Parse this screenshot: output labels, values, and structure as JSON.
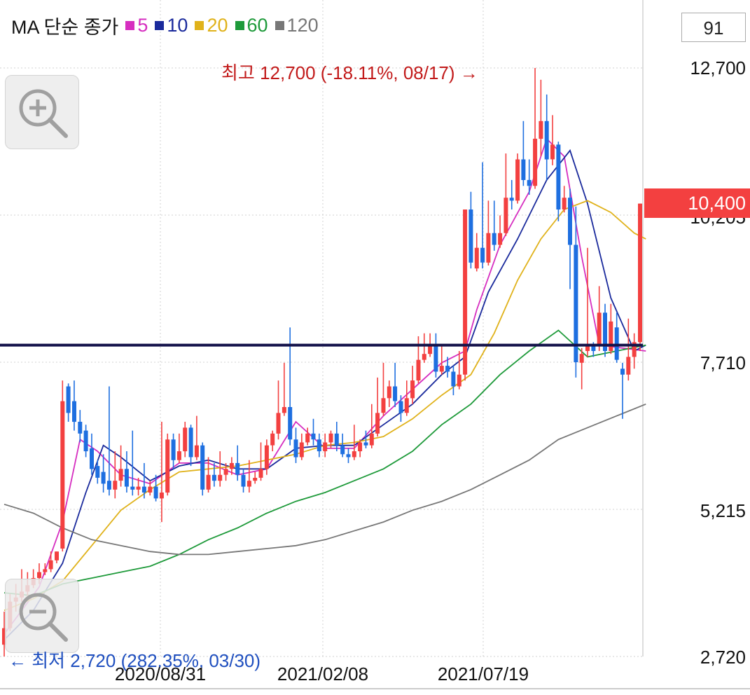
{
  "legend": {
    "title": "MA 단순 종가",
    "items": [
      {
        "label": "5",
        "color": "#d62ec0"
      },
      {
        "label": "10",
        "color": "#1a2a9c"
      },
      {
        "label": "20",
        "color": "#e0b21b"
      },
      {
        "label": "60",
        "color": "#1e9a3a"
      },
      {
        "label": "120",
        "color": "#777777"
      }
    ]
  },
  "count_box": "91",
  "annotations": {
    "high": "최고 12,700 (-18.11%, 08/17) →",
    "low": "← 최저 2,720 (282.35%, 03/30)"
  },
  "price_tag": "10,400",
  "colors": {
    "up": "#f34040",
    "down": "#1e6fe0",
    "support_line": "#14124a",
    "grid": "#d0d0d0"
  },
  "chart_data": {
    "type": "candlestick",
    "y_ticks": [
      "12,700",
      "10,205",
      "7,710",
      "5,215",
      "2,720"
    ],
    "y_tick_values": [
      12700,
      10205,
      7710,
      5215,
      2720
    ],
    "x_ticks": [
      "2020/08/31",
      "2021/02/08",
      "2021/07/19"
    ],
    "ylim": [
      2720,
      12700
    ],
    "high": {
      "value": 12700,
      "change_pct": -18.11,
      "date": "08/17"
    },
    "low": {
      "value": 2720,
      "change_pct": 282.35,
      "date": "03/30"
    },
    "last_price": 10400,
    "horizontal_line": 8000,
    "candles": [
      [
        2920,
        3200,
        2720,
        3480
      ],
      [
        3200,
        3650,
        3150,
        3780
      ],
      [
        3650,
        3720,
        3480,
        3950
      ],
      [
        3720,
        3820,
        3650,
        4200
      ],
      [
        3820,
        3930,
        3750,
        4150
      ],
      [
        3930,
        4050,
        3880,
        4200
      ],
      [
        4050,
        4150,
        3950,
        4300
      ],
      [
        4150,
        4200,
        4100,
        4300
      ],
      [
        4200,
        4350,
        4150,
        4500
      ],
      [
        4350,
        4500,
        4300,
        4500
      ],
      [
        4550,
        7050,
        4500,
        7400
      ],
      [
        7300,
        6850,
        6700,
        7350
      ],
      [
        7050,
        6700,
        6550,
        7400
      ],
      [
        6700,
        6500,
        6350,
        6900
      ],
      [
        6550,
        6200,
        6100,
        6650
      ],
      [
        6250,
        5900,
        5800,
        6500
      ],
      [
        5950,
        5750,
        5650,
        6050
      ],
      [
        5850,
        5650,
        5500,
        6150
      ],
      [
        5700,
        5550,
        5450,
        7300
      ],
      [
        5550,
        5700,
        5400,
        6200
      ],
      [
        5700,
        5900,
        5600,
        6300
      ],
      [
        5900,
        5600,
        5500,
        6200
      ],
      [
        5600,
        5550,
        5450,
        6550
      ],
      [
        5550,
        5600,
        5450,
        5750
      ],
      [
        5600,
        5500,
        5400,
        6000
      ],
      [
        5500,
        5600,
        5450,
        5700
      ],
      [
        5600,
        5400,
        5350,
        5800
      ],
      [
        5400,
        5500,
        5000,
        6700
      ],
      [
        5500,
        6400,
        5450,
        6500
      ],
      [
        6400,
        6050,
        5900,
        6500
      ],
      [
        6050,
        6200,
        6000,
        6500
      ],
      [
        6200,
        6600,
        6100,
        6700
      ],
      [
        6600,
        6100,
        5950,
        6650
      ],
      [
        6100,
        6300,
        6050,
        6800
      ],
      [
        6300,
        5550,
        5450,
        6350
      ],
      [
        5550,
        5800,
        5500,
        6100
      ],
      [
        5800,
        5700,
        5600,
        6000
      ],
      [
        5700,
        5800,
        5600,
        6200
      ],
      [
        5800,
        5900,
        5700,
        6000
      ],
      [
        5900,
        6000,
        5800,
        6100
      ],
      [
        6000,
        5800,
        5700,
        6300
      ],
      [
        5800,
        5600,
        5500,
        5900
      ],
      [
        5600,
        5700,
        5500,
        6050
      ],
      [
        5700,
        5750,
        5650,
        5850
      ],
      [
        5750,
        5900,
        5700,
        6350
      ],
      [
        5900,
        6300,
        5800,
        6400
      ],
      [
        6300,
        6500,
        6200,
        6550
      ],
      [
        6500,
        6850,
        6400,
        7400
      ],
      [
        6850,
        6950,
        6800,
        7700
      ],
      [
        6950,
        6400,
        6300,
        8300
      ],
      [
        6400,
        6100,
        6000,
        6600
      ],
      [
        6100,
        6350,
        6050,
        6500
      ],
      [
        6350,
        6500,
        6300,
        6600
      ],
      [
        6500,
        6400,
        6300,
        6750
      ],
      [
        6400,
        6200,
        6100,
        6500
      ],
      [
        6200,
        6350,
        6100,
        6500
      ],
      [
        6350,
        6500,
        6250,
        6550
      ],
      [
        6500,
        6300,
        6200,
        6700
      ],
      [
        6300,
        6150,
        6100,
        6500
      ],
      [
        6150,
        6100,
        6000,
        6250
      ],
      [
        6100,
        6200,
        6050,
        6650
      ],
      [
        6200,
        6350,
        6100,
        6400
      ],
      [
        6350,
        6300,
        6250,
        6550
      ],
      [
        6300,
        6500,
        6250,
        7000
      ],
      [
        6500,
        6850,
        6450,
        7450
      ],
      [
        6850,
        7100,
        6800,
        7700
      ],
      [
        7100,
        7300,
        6950,
        7400
      ],
      [
        7300,
        7050,
        6950,
        7700
      ],
      [
        7050,
        6850,
        6700,
        7150
      ],
      [
        6850,
        7100,
        6800,
        7400
      ],
      [
        7100,
        7400,
        7000,
        7650
      ],
      [
        7400,
        7750,
        7350,
        8150
      ],
      [
        7750,
        7850,
        7700,
        8200
      ],
      [
        7850,
        8000,
        7800,
        8200
      ],
      [
        8000,
        7550,
        7450,
        8200
      ],
      [
        7550,
        7650,
        7500,
        8000
      ],
      [
        7650,
        7550,
        7450,
        7800
      ],
      [
        7550,
        7300,
        7150,
        7650
      ],
      [
        7300,
        7500,
        7250,
        7900
      ],
      [
        7500,
        10300,
        7400,
        10300
      ],
      [
        10300,
        9400,
        9300,
        10600
      ],
      [
        9300,
        9650,
        9250,
        9900
      ],
      [
        9650,
        9400,
        9300,
        11100
      ],
      [
        9400,
        9900,
        9350,
        10450
      ],
      [
        9900,
        9700,
        9600,
        10450
      ],
      [
        9700,
        9900,
        9650,
        10200
      ],
      [
        9900,
        10500,
        9850,
        11250
      ],
      [
        10500,
        10450,
        10300,
        10800
      ],
      [
        10450,
        11150,
        10400,
        11250
      ],
      [
        11150,
        10800,
        10700,
        11800
      ],
      [
        10800,
        10700,
        10550,
        11150
      ],
      [
        10700,
        11500,
        10650,
        12700
      ],
      [
        11500,
        11800,
        11200,
        12500
      ],
      [
        11800,
        11150,
        10800,
        12250
      ],
      [
        11150,
        11400,
        11050,
        11900
      ],
      [
        11400,
        10300,
        10100,
        11450
      ],
      [
        10300,
        10500,
        10250,
        10700
      ],
      [
        10500,
        9700,
        8950,
        10650
      ],
      [
        9700,
        7710,
        7450,
        10350
      ],
      [
        7700,
        7850,
        7250,
        7950
      ],
      [
        7900,
        8000,
        7800,
        9650
      ],
      [
        8000,
        7900,
        7800,
        8050
      ],
      [
        8000,
        8550,
        7900,
        9000
      ],
      [
        8550,
        7900,
        7800,
        8700
      ],
      [
        7900,
        8400,
        7850,
        8700
      ],
      [
        8300,
        7750,
        7700,
        8550
      ],
      [
        7600,
        7500,
        6750,
        7700
      ],
      [
        7500,
        7800,
        7400,
        8450
      ],
      [
        7800,
        8050,
        7600,
        8200
      ],
      [
        8050,
        10400,
        7900,
        10400
      ]
    ],
    "ma_lines": {
      "ma5": [
        [
          0,
          3100
        ],
        [
          3,
          3500
        ],
        [
          6,
          3900
        ],
        [
          10,
          5000
        ],
        [
          13,
          6400
        ],
        [
          16,
          6200
        ],
        [
          20,
          5800
        ],
        [
          25,
          5650
        ],
        [
          30,
          6000
        ],
        [
          35,
          6000
        ],
        [
          40,
          5800
        ],
        [
          45,
          5900
        ],
        [
          50,
          6700
        ],
        [
          55,
          6250
        ],
        [
          60,
          6250
        ],
        [
          65,
          6800
        ],
        [
          70,
          7250
        ],
        [
          75,
          7700
        ],
        [
          79,
          7900
        ],
        [
          81,
          8600
        ],
        [
          85,
          9700
        ],
        [
          90,
          10600
        ],
        [
          93,
          11500
        ],
        [
          96,
          11200
        ],
        [
          99,
          9500
        ],
        [
          102,
          8000
        ],
        [
          106,
          7950
        ],
        [
          110,
          7900
        ]
      ],
      "ma10": [
        [
          0,
          3000
        ],
        [
          5,
          3500
        ],
        [
          10,
          4300
        ],
        [
          14,
          5500
        ],
        [
          17,
          6300
        ],
        [
          20,
          6100
        ],
        [
          25,
          5700
        ],
        [
          30,
          5950
        ],
        [
          35,
          6050
        ],
        [
          40,
          5900
        ],
        [
          45,
          5900
        ],
        [
          50,
          6250
        ],
        [
          55,
          6300
        ],
        [
          60,
          6300
        ],
        [
          65,
          6650
        ],
        [
          70,
          7000
        ],
        [
          75,
          7500
        ],
        [
          79,
          7800
        ],
        [
          83,
          8900
        ],
        [
          88,
          9800
        ],
        [
          93,
          10800
        ],
        [
          97,
          11300
        ],
        [
          100,
          10400
        ],
        [
          104,
          8800
        ],
        [
          108,
          7900
        ],
        [
          110,
          8000
        ]
      ],
      "ma20": [
        [
          0,
          3500
        ],
        [
          5,
          3700
        ],
        [
          10,
          4000
        ],
        [
          15,
          4600
        ],
        [
          20,
          5200
        ],
        [
          25,
          5550
        ],
        [
          30,
          5850
        ],
        [
          35,
          5900
        ],
        [
          40,
          5950
        ],
        [
          45,
          6050
        ],
        [
          50,
          6150
        ],
        [
          55,
          6300
        ],
        [
          60,
          6350
        ],
        [
          65,
          6450
        ],
        [
          70,
          6750
        ],
        [
          75,
          7150
        ],
        [
          80,
          7500
        ],
        [
          84,
          8200
        ],
        [
          88,
          9100
        ],
        [
          92,
          9800
        ],
        [
          96,
          10300
        ],
        [
          100,
          10450
        ],
        [
          104,
          10250
        ],
        [
          108,
          9900
        ],
        [
          110,
          9800
        ]
      ],
      "ma60": [
        [
          0,
          3800
        ],
        [
          5,
          3750
        ],
        [
          10,
          3950
        ],
        [
          15,
          4050
        ],
        [
          20,
          4150
        ],
        [
          25,
          4250
        ],
        [
          30,
          4450
        ],
        [
          35,
          4700
        ],
        [
          40,
          4900
        ],
        [
          45,
          5150
        ],
        [
          50,
          5350
        ],
        [
          55,
          5500
        ],
        [
          60,
          5700
        ],
        [
          65,
          5900
        ],
        [
          70,
          6200
        ],
        [
          75,
          6650
        ],
        [
          80,
          7000
        ],
        [
          85,
          7500
        ],
        [
          90,
          7900
        ],
        [
          95,
          8250
        ],
        [
          100,
          7800
        ],
        [
          105,
          7900
        ],
        [
          110,
          8000
        ]
      ],
      "ma120": [
        [
          0,
          5300
        ],
        [
          5,
          5150
        ],
        [
          10,
          4900
        ],
        [
          15,
          4700
        ],
        [
          20,
          4600
        ],
        [
          25,
          4500
        ],
        [
          30,
          4450
        ],
        [
          35,
          4450
        ],
        [
          40,
          4500
        ],
        [
          45,
          4550
        ],
        [
          50,
          4600
        ],
        [
          55,
          4700
        ],
        [
          60,
          4850
        ],
        [
          65,
          5000
        ],
        [
          70,
          5200
        ],
        [
          75,
          5350
        ],
        [
          80,
          5550
        ],
        [
          85,
          5800
        ],
        [
          90,
          6050
        ],
        [
          95,
          6400
        ],
        [
          100,
          6600
        ],
        [
          105,
          6800
        ],
        [
          110,
          7000
        ]
      ]
    }
  }
}
